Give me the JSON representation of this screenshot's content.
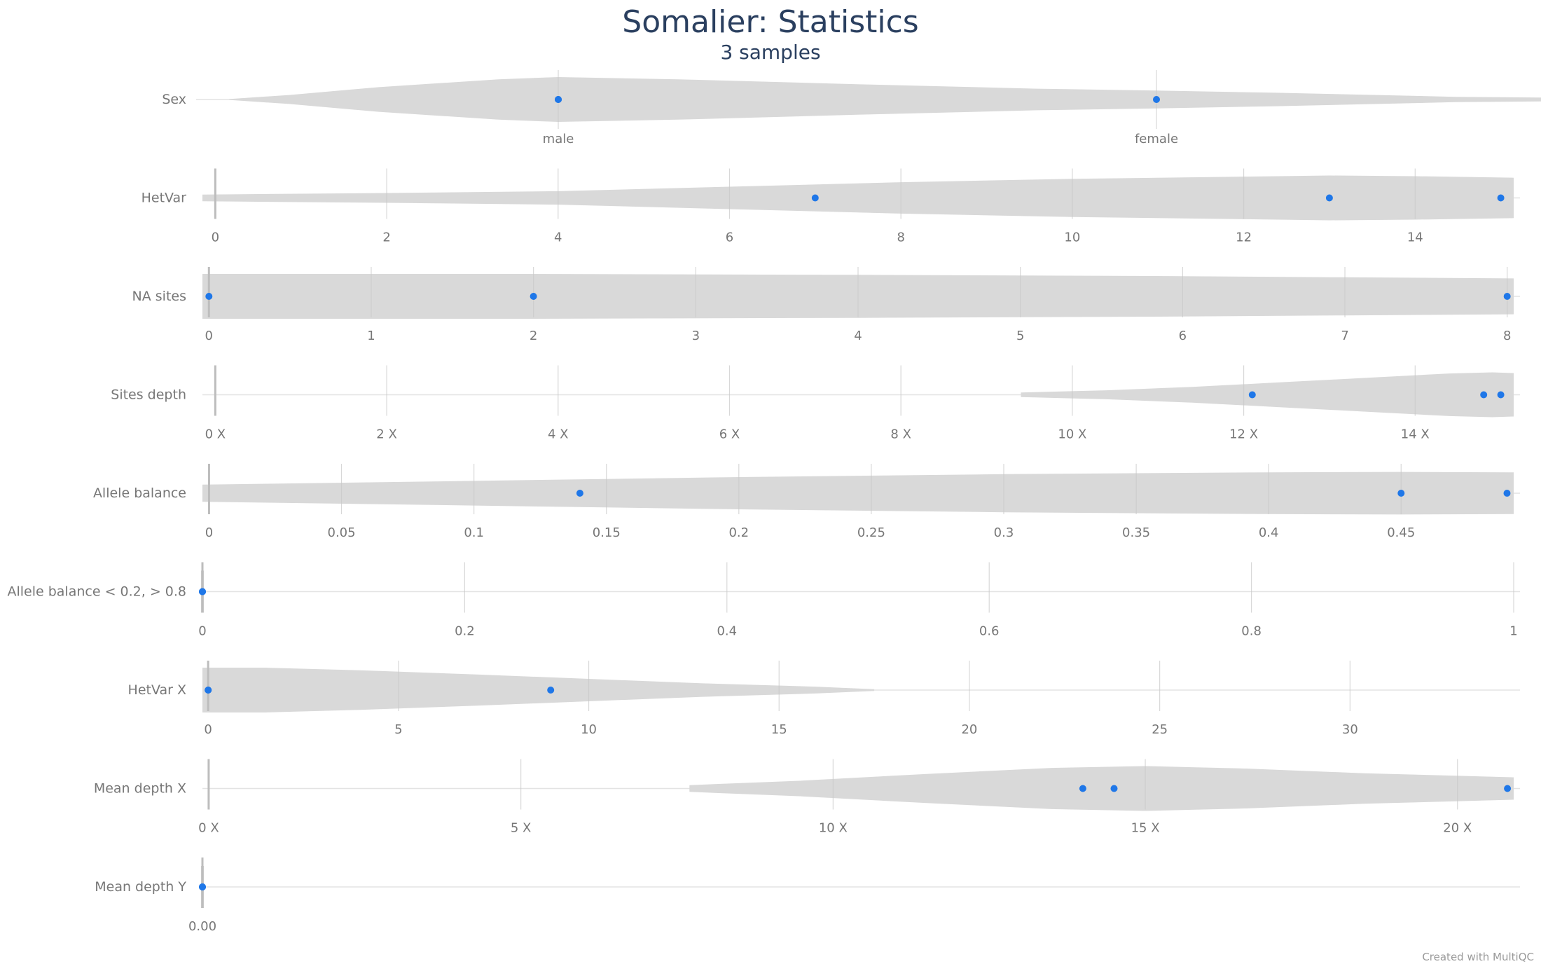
{
  "chart_data": {
    "type": "violin",
    "title": "Somalier: Statistics",
    "subtitle": "3 samples",
    "credit": "Created with MultiQC",
    "colors": {
      "violin": "#d9d9d9",
      "point": "#1f77e8",
      "grid": "#e3e3e3",
      "text": "#777777",
      "title": "#2a3f5f"
    },
    "metrics": [
      {
        "label": "Sex",
        "kind": "categorical",
        "categories": [
          "male",
          "female"
        ],
        "values": [
          "male",
          "female",
          "male"
        ],
        "density": [
          [
            -0.55,
            0.02
          ],
          [
            -0.45,
            0.2
          ],
          [
            -0.3,
            0.55
          ],
          [
            -0.1,
            0.9
          ],
          [
            0.0,
            1.0
          ],
          [
            0.2,
            0.9
          ],
          [
            0.5,
            0.68
          ],
          [
            0.8,
            0.48
          ],
          [
            1.0,
            0.4
          ],
          [
            1.2,
            0.3
          ],
          [
            1.5,
            0.12
          ],
          [
            1.8,
            0.05
          ],
          [
            1.98,
            0.02
          ]
        ]
      },
      {
        "label": "HetVar",
        "kind": "numeric",
        "range": [
          -0.15,
          15.15
        ],
        "ticks": [
          0,
          2,
          4,
          6,
          8,
          10,
          12,
          14
        ],
        "tick_labels": [
          "0",
          "2",
          "4",
          "6",
          "8",
          "10",
          "12",
          "14"
        ],
        "values": [
          7,
          13,
          15
        ],
        "density": [
          [
            -0.15,
            0.15
          ],
          [
            2,
            0.22
          ],
          [
            4,
            0.3
          ],
          [
            6,
            0.5
          ],
          [
            8,
            0.7
          ],
          [
            10,
            0.85
          ],
          [
            12,
            0.95
          ],
          [
            13,
            1.0
          ],
          [
            14,
            0.97
          ],
          [
            15.15,
            0.9
          ]
        ]
      },
      {
        "label": "NA sites",
        "kind": "numeric",
        "range": [
          -0.04,
          8.04
        ],
        "ticks": [
          0,
          1,
          2,
          3,
          4,
          5,
          6,
          7,
          8
        ],
        "tick_labels": [
          "0",
          "1",
          "2",
          "3",
          "4",
          "5",
          "6",
          "7",
          "8"
        ],
        "values": [
          0,
          2,
          8
        ],
        "density": [
          [
            -0.04,
            1.0
          ],
          [
            2,
            1.0
          ],
          [
            4,
            0.96
          ],
          [
            6,
            0.9
          ],
          [
            7,
            0.85
          ],
          [
            8.04,
            0.8
          ]
        ]
      },
      {
        "label": "Sites depth",
        "kind": "numeric",
        "range": [
          -0.15,
          15.15
        ],
        "ticks": [
          0,
          2,
          4,
          6,
          8,
          10,
          12,
          14
        ],
        "tick_labels": [
          "0 X",
          "2 X",
          "4 X",
          "6 X",
          "8 X",
          "10 X",
          "12 X",
          "14 X"
        ],
        "values": [
          12.1,
          14.8,
          15.0
        ],
        "density": [
          [
            9.4,
            0.1
          ],
          [
            10.4,
            0.2
          ],
          [
            11.4,
            0.35
          ],
          [
            12.4,
            0.55
          ],
          [
            13.4,
            0.75
          ],
          [
            14.4,
            0.95
          ],
          [
            14.9,
            1.0
          ],
          [
            15.15,
            0.97
          ]
        ]
      },
      {
        "label": "Allele balance",
        "kind": "numeric",
        "range": [
          -0.0025,
          0.4925
        ],
        "ticks": [
          0,
          0.05,
          0.1,
          0.15,
          0.2,
          0.25,
          0.3,
          0.35,
          0.4,
          0.45
        ],
        "tick_labels": [
          "0",
          "0.05",
          "0.1",
          "0.15",
          "0.2",
          "0.25",
          "0.3",
          "0.35",
          "0.4",
          "0.45"
        ],
        "values": [
          0.14,
          0.45,
          0.49
        ],
        "density": [
          [
            -0.0025,
            0.38
          ],
          [
            0.1,
            0.55
          ],
          [
            0.2,
            0.72
          ],
          [
            0.3,
            0.85
          ],
          [
            0.4,
            0.93
          ],
          [
            0.45,
            0.95
          ],
          [
            0.4925,
            0.93
          ]
        ]
      },
      {
        "label": "Allele balance < 0.2, > 0.8",
        "kind": "numeric",
        "range": [
          0,
          1
        ],
        "ticks": [
          0,
          0.2,
          0.4,
          0.6,
          0.8,
          1
        ],
        "tick_labels": [
          "0",
          "0.2",
          "0.4",
          "0.6",
          "0.8",
          "1"
        ],
        "values": [
          0,
          0,
          0
        ],
        "density": []
      },
      {
        "label": "HetVar X",
        "kind": "numeric",
        "range": [
          -0.15,
          34.3
        ],
        "ticks": [
          0,
          5,
          10,
          15,
          20,
          25,
          30
        ],
        "tick_labels": [
          "0",
          "5",
          "10",
          "15",
          "20",
          "25",
          "30"
        ],
        "values": [
          0,
          9,
          0
        ],
        "density": [
          [
            -0.15,
            1.0
          ],
          [
            1.5,
            1.0
          ],
          [
            4,
            0.88
          ],
          [
            7,
            0.7
          ],
          [
            10,
            0.5
          ],
          [
            13,
            0.3
          ],
          [
            16,
            0.15
          ],
          [
            17.5,
            0.04
          ]
        ]
      },
      {
        "label": "Mean depth X",
        "kind": "numeric",
        "range": [
          -0.1,
          20.9
        ],
        "ticks": [
          0,
          5,
          10,
          15,
          20
        ],
        "tick_labels": [
          "0 X",
          "5 X",
          "10 X",
          "15 X",
          "20 X"
        ],
        "values": [
          14.0,
          14.5,
          20.8
        ],
        "density": [
          [
            7.7,
            0.15
          ],
          [
            9.5,
            0.35
          ],
          [
            11.5,
            0.65
          ],
          [
            13.5,
            0.92
          ],
          [
            15,
            1.0
          ],
          [
            16.5,
            0.9
          ],
          [
            18.5,
            0.68
          ],
          [
            20.9,
            0.5
          ]
        ]
      },
      {
        "label": "Mean depth Y",
        "kind": "numeric",
        "range": [
          0,
          1
        ],
        "ticks": [
          0
        ],
        "tick_labels": [
          "0.00"
        ],
        "values": [
          0,
          0,
          0
        ],
        "density": []
      }
    ]
  }
}
